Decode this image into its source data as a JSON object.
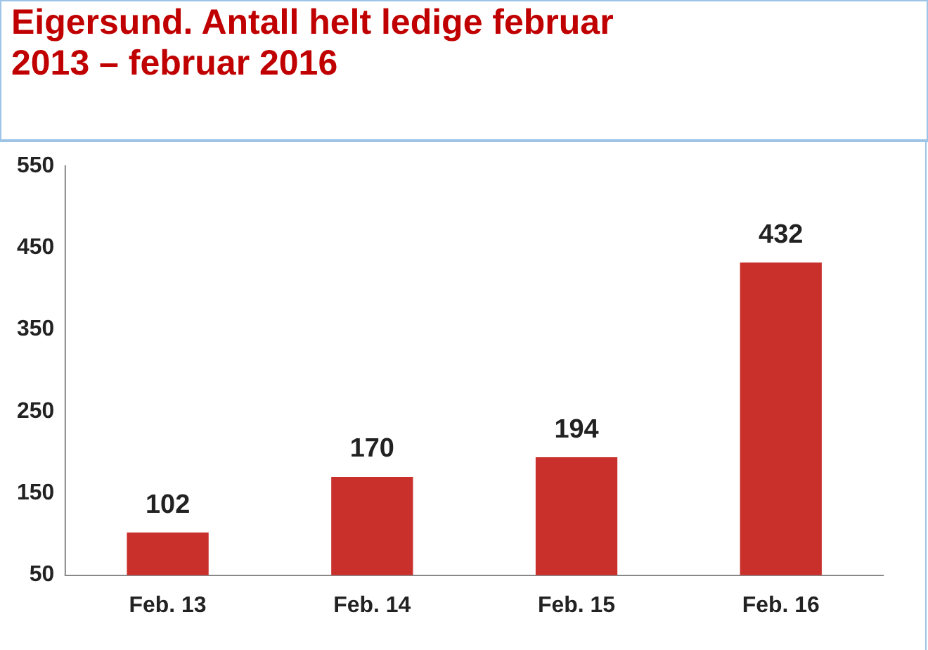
{
  "chart_data": {
    "type": "bar",
    "title": "Eigersund. Antall helt ledige februar 2013 – februar 2016",
    "categories": [
      "Feb. 13",
      "Feb. 14",
      "Feb. 15",
      "Feb. 16"
    ],
    "values": [
      102,
      170,
      194,
      432
    ],
    "color": "#c9302c",
    "ylim": [
      50,
      550
    ],
    "yticks": [
      50,
      150,
      250,
      350,
      450,
      550
    ],
    "grid": false,
    "data_labels": true
  }
}
